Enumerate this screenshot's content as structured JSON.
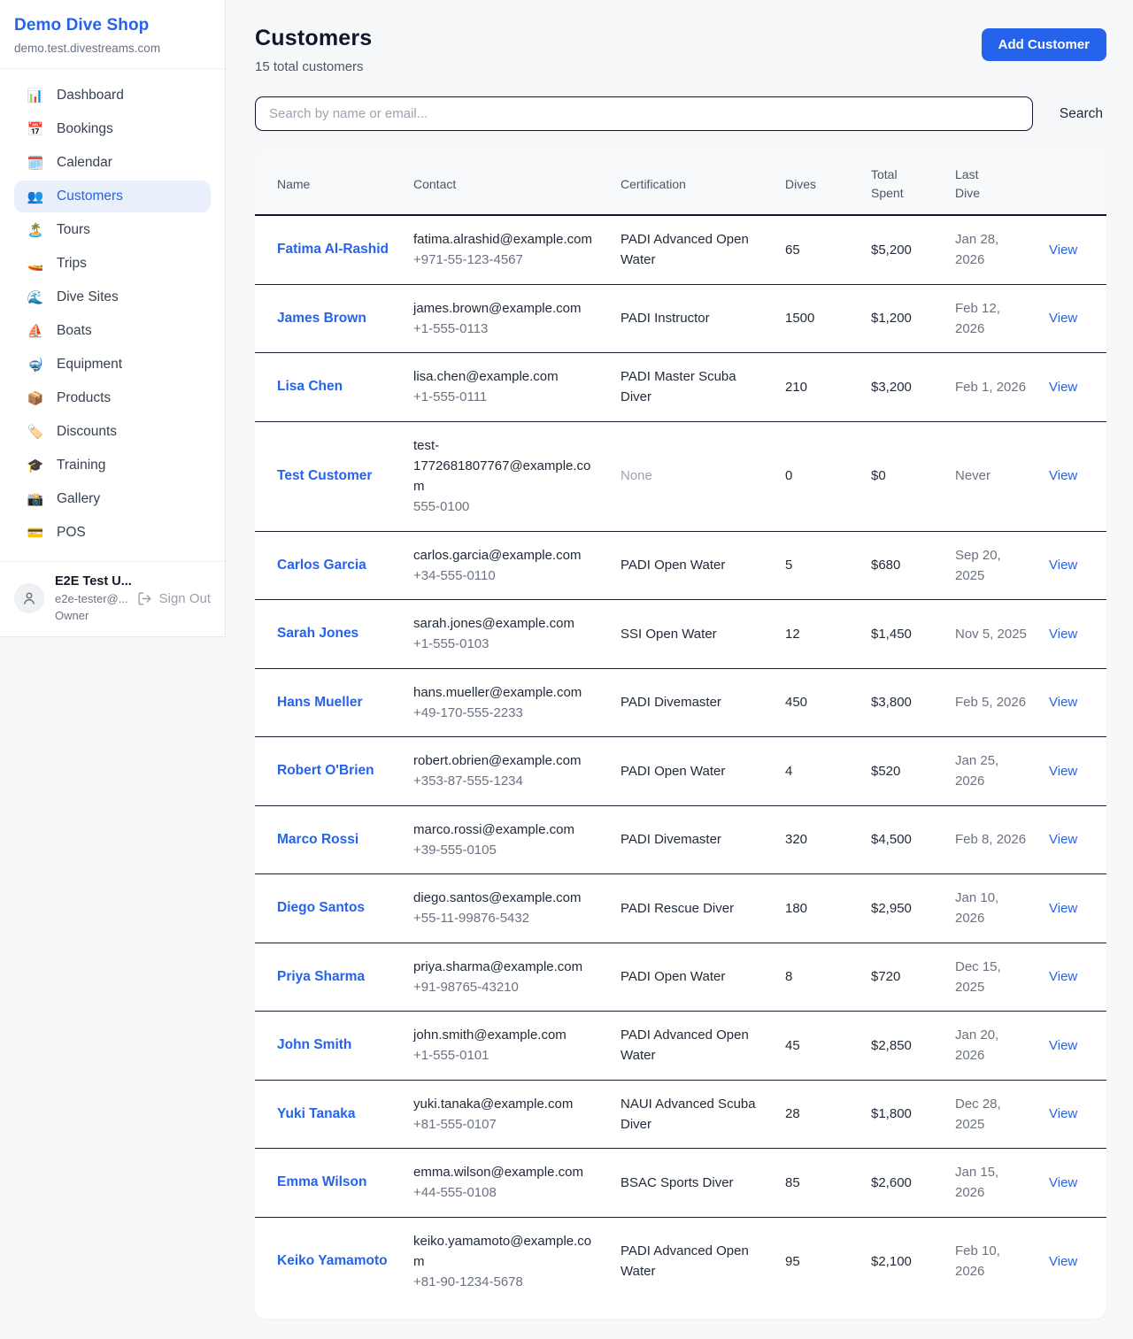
{
  "colors": {
    "accent": "#2563eb",
    "link": "#2563eb",
    "muted_text": "#9ca3af",
    "page_bg": "#f7f8fa"
  },
  "sidebar": {
    "shop_name": "Demo Dive Shop",
    "shop_domain": "demo.test.divestreams.com",
    "items": [
      {
        "icon": "📊",
        "label": "Dashboard",
        "active": false
      },
      {
        "icon": "📅",
        "label": "Bookings",
        "active": false
      },
      {
        "icon": "🗓️",
        "label": "Calendar",
        "active": false
      },
      {
        "icon": "👥",
        "label": "Customers",
        "active": true
      },
      {
        "icon": "🏝️",
        "label": "Tours",
        "active": false
      },
      {
        "icon": "🚤",
        "label": "Trips",
        "active": false
      },
      {
        "icon": "🌊",
        "label": "Dive Sites",
        "active": false
      },
      {
        "icon": "⛵",
        "label": "Boats",
        "active": false
      },
      {
        "icon": "🤿",
        "label": "Equipment",
        "active": false
      },
      {
        "icon": "📦",
        "label": "Products",
        "active": false
      },
      {
        "icon": "🏷️",
        "label": "Discounts",
        "active": false
      },
      {
        "icon": "🎓",
        "label": "Training",
        "active": false
      },
      {
        "icon": "📸",
        "label": "Gallery",
        "active": false
      },
      {
        "icon": "💳",
        "label": "POS",
        "active": false
      }
    ],
    "user": {
      "name": "E2E Test U...",
      "email": "e2e-tester@...",
      "role": "Owner",
      "sign_out_label": "Sign Out"
    }
  },
  "header": {
    "title": "Customers",
    "subtitle": "15 total customers",
    "add_button_label": "Add Customer"
  },
  "search": {
    "placeholder": "Search by name or email...",
    "button_label": "Search"
  },
  "table": {
    "columns": [
      "Name",
      "Contact",
      "Certification",
      "Dives",
      "Total Spent",
      "Last Dive",
      ""
    ],
    "view_label": "View",
    "rows": [
      {
        "name": "Fatima Al-Rashid",
        "email": "fatima.alrashid@example.com",
        "phone": "+971-55-123-4567",
        "certification": "PADI Advanced Open Water",
        "certification_muted": false,
        "dives": "65",
        "total_spent": "$5,200",
        "last_dive": "Jan 28, 2026"
      },
      {
        "name": "James Brown",
        "email": "james.brown@example.com",
        "phone": "+1-555-0113",
        "certification": "PADI Instructor",
        "certification_muted": false,
        "dives": "1500",
        "total_spent": "$1,200",
        "last_dive": "Feb 12, 2026"
      },
      {
        "name": "Lisa Chen",
        "email": "lisa.chen@example.com",
        "phone": "+1-555-0111",
        "certification": "PADI Master Scuba Diver",
        "certification_muted": false,
        "dives": "210",
        "total_spent": "$3,200",
        "last_dive": "Feb 1, 2026"
      },
      {
        "name": "Test Customer",
        "email": "test-1772681807767@example.com",
        "phone": "555-0100",
        "certification": "None",
        "certification_muted": true,
        "dives": "0",
        "total_spent": "$0",
        "last_dive": "Never"
      },
      {
        "name": "Carlos Garcia",
        "email": "carlos.garcia@example.com",
        "phone": "+34-555-0110",
        "certification": "PADI Open Water",
        "certification_muted": false,
        "dives": "5",
        "total_spent": "$680",
        "last_dive": "Sep 20, 2025"
      },
      {
        "name": "Sarah Jones",
        "email": "sarah.jones@example.com",
        "phone": "+1-555-0103",
        "certification": "SSI Open Water",
        "certification_muted": false,
        "dives": "12",
        "total_spent": "$1,450",
        "last_dive": "Nov 5, 2025"
      },
      {
        "name": "Hans Mueller",
        "email": "hans.mueller@example.com",
        "phone": "+49-170-555-2233",
        "certification": "PADI Divemaster",
        "certification_muted": false,
        "dives": "450",
        "total_spent": "$3,800",
        "last_dive": "Feb 5, 2026"
      },
      {
        "name": "Robert O'Brien",
        "email": "robert.obrien@example.com",
        "phone": "+353-87-555-1234",
        "certification": "PADI Open Water",
        "certification_muted": false,
        "dives": "4",
        "total_spent": "$520",
        "last_dive": "Jan 25, 2026"
      },
      {
        "name": "Marco Rossi",
        "email": "marco.rossi@example.com",
        "phone": "+39-555-0105",
        "certification": "PADI Divemaster",
        "certification_muted": false,
        "dives": "320",
        "total_spent": "$4,500",
        "last_dive": "Feb 8, 2026"
      },
      {
        "name": "Diego Santos",
        "email": "diego.santos@example.com",
        "phone": "+55-11-99876-5432",
        "certification": "PADI Rescue Diver",
        "certification_muted": false,
        "dives": "180",
        "total_spent": "$2,950",
        "last_dive": "Jan 10, 2026"
      },
      {
        "name": "Priya Sharma",
        "email": "priya.sharma@example.com",
        "phone": "+91-98765-43210",
        "certification": "PADI Open Water",
        "certification_muted": false,
        "dives": "8",
        "total_spent": "$720",
        "last_dive": "Dec 15, 2025"
      },
      {
        "name": "John Smith",
        "email": "john.smith@example.com",
        "phone": "+1-555-0101",
        "certification": "PADI Advanced Open Water",
        "certification_muted": false,
        "dives": "45",
        "total_spent": "$2,850",
        "last_dive": "Jan 20, 2026"
      },
      {
        "name": "Yuki Tanaka",
        "email": "yuki.tanaka@example.com",
        "phone": "+81-555-0107",
        "certification": "NAUI Advanced Scuba Diver",
        "certification_muted": false,
        "dives": "28",
        "total_spent": "$1,800",
        "last_dive": "Dec 28, 2025"
      },
      {
        "name": "Emma Wilson",
        "email": "emma.wilson@example.com",
        "phone": "+44-555-0108",
        "certification": "BSAC Sports Diver",
        "certification_muted": false,
        "dives": "85",
        "total_spent": "$2,600",
        "last_dive": "Jan 15, 2026"
      },
      {
        "name": "Keiko Yamamoto",
        "email": "keiko.yamamoto@example.com",
        "phone": "+81-90-1234-5678",
        "certification": "PADI Advanced Open Water",
        "certification_muted": false,
        "dives": "95",
        "total_spent": "$2,100",
        "last_dive": "Feb 10, 2026"
      }
    ]
  }
}
